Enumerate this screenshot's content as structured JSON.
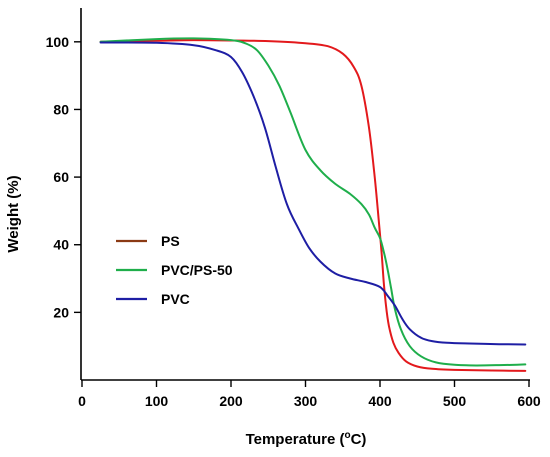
{
  "chart_data": {
    "type": "line",
    "xlabel": "Temperature (",
    "xlabel_sup": "o",
    "xlabel_end": "C)",
    "ylabel": "Weight (%)",
    "xlim": [
      0,
      600
    ],
    "ylim": [
      0,
      110
    ],
    "x_ticks": [
      0,
      100,
      200,
      300,
      400,
      500,
      600
    ],
    "y_ticks": [
      20,
      40,
      60,
      80,
      100
    ],
    "grid": false,
    "legend_position": "left-middle",
    "series": [
      {
        "name": "PS",
        "color": "#e3191c",
        "legend_color": "#8b3a14",
        "x": [
          25,
          100,
          150,
          200,
          250,
          300,
          330,
          350,
          365,
          375,
          385,
          392,
          398,
          402,
          405,
          408,
          412,
          418,
          425,
          435,
          450,
          470,
          500,
          550,
          595
        ],
        "y": [
          100,
          100.3,
          100.5,
          100.4,
          100.2,
          99.6,
          98.7,
          96.5,
          92.5,
          87,
          75,
          62,
          48,
          38,
          29,
          22,
          16,
          11,
          8,
          5.5,
          4,
          3.3,
          3,
          2.8,
          2.7
        ]
      },
      {
        "name": "PVC/PS-50",
        "color": "#1fae4b",
        "legend_color": "#1fae4b",
        "x": [
          25,
          100,
          150,
          200,
          220,
          235,
          250,
          265,
          280,
          300,
          320,
          340,
          360,
          375,
          385,
          393,
          400,
          405,
          410,
          415,
          420,
          428,
          440,
          455,
          475,
          500,
          530,
          560,
          595
        ],
        "y": [
          100,
          100.8,
          101,
          100.5,
          99.5,
          97.5,
          93,
          87,
          79,
          68,
          62,
          58,
          55,
          52,
          49,
          45,
          42,
          38,
          33,
          27,
          21,
          15,
          10,
          7,
          5.2,
          4.5,
          4.3,
          4.4,
          4.6
        ]
      },
      {
        "name": "PVC",
        "color": "#1e1ea4",
        "legend_color": "#1e1ea4",
        "x": [
          25,
          100,
          150,
          180,
          200,
          215,
          230,
          245,
          260,
          275,
          290,
          305,
          320,
          340,
          360,
          380,
          400,
          410,
          420,
          430,
          440,
          455,
          470,
          490,
          520,
          560,
          595
        ],
        "y": [
          99.8,
          99.7,
          99,
          97.5,
          95.5,
          91,
          84,
          75,
          63,
          52,
          45,
          39,
          35,
          31.5,
          30,
          29,
          27.5,
          25,
          22,
          18,
          15,
          12.5,
          11.5,
          11,
          10.8,
          10.6,
          10.5
        ]
      }
    ]
  }
}
